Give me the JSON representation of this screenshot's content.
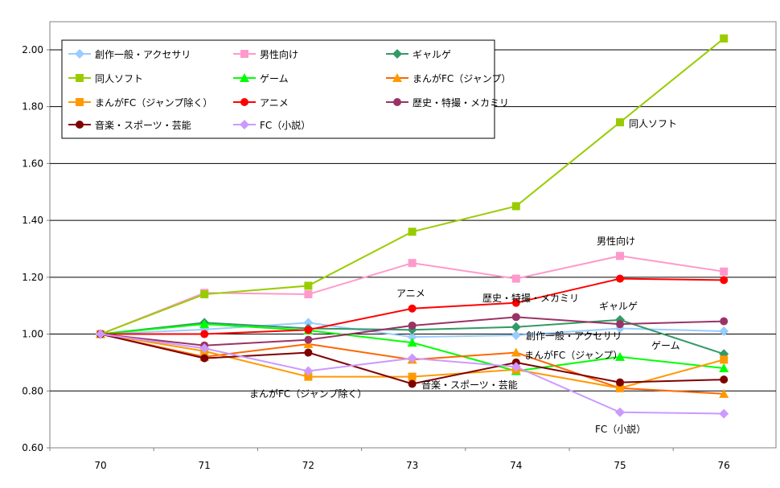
{
  "chart_data": {
    "type": "line",
    "title": "",
    "xlabel": "",
    "ylabel": "",
    "categories": [
      "70",
      "71",
      "72",
      "73",
      "74",
      "75",
      "76"
    ],
    "ylim": [
      0.6,
      2.0
    ],
    "yticks": [
      "0.60",
      "0.80",
      "1.00",
      "1.20",
      "1.40",
      "1.60",
      "1.80",
      "2.00"
    ],
    "grid": "horizontal",
    "legend": "top-left",
    "series": [
      {
        "name": "創作一般・アクセサリ",
        "color": "#99CCFF",
        "marker": "diamond",
        "values": [
          1.0,
          1.016,
          1.04,
          0.99,
          0.996,
          1.02,
          1.01
        ]
      },
      {
        "name": "男性向け",
        "color": "#FF99CC",
        "marker": "square",
        "values": [
          1.0,
          1.145,
          1.14,
          1.25,
          1.195,
          1.275,
          1.22
        ]
      },
      {
        "name": "ギャルゲ",
        "color": "#339966",
        "marker": "diamond",
        "values": [
          1.0,
          1.04,
          1.02,
          1.015,
          1.025,
          1.05,
          0.93
        ]
      },
      {
        "name": "同人ソフト",
        "color": "#99CC00",
        "marker": "square",
        "values": [
          1.0,
          1.14,
          1.17,
          1.36,
          1.45,
          1.745,
          2.04
        ]
      },
      {
        "name": "ゲーム",
        "color": "#00FF00",
        "marker": "triangle",
        "values": [
          1.0,
          1.035,
          1.013,
          0.97,
          0.87,
          0.92,
          0.88
        ]
      },
      {
        "name": "まんがFC（ジャンプ）",
        "color": "#FF6600",
        "markerColor": "#FF9900",
        "marker": "triangle",
        "values": [
          1.0,
          0.92,
          0.965,
          0.91,
          0.935,
          0.81,
          0.79
        ]
      },
      {
        "name": "まんがFC（ジャンプ除く）",
        "color": "#FF9900",
        "marker": "square",
        "values": [
          1.0,
          0.94,
          0.85,
          0.85,
          0.875,
          0.81,
          0.91
        ]
      },
      {
        "name": "アニメ",
        "color": "#FF0000",
        "marker": "circle",
        "values": [
          1.0,
          1.0,
          1.015,
          1.09,
          1.11,
          1.195,
          1.19
        ]
      },
      {
        "name": "歴史・特撮・メカミリ",
        "color": "#993366",
        "marker": "circle",
        "values": [
          1.0,
          0.96,
          0.98,
          1.03,
          1.06,
          1.035,
          1.045
        ]
      },
      {
        "name": "音楽・スポーツ・芸能",
        "color": "#800000",
        "marker": "circle",
        "values": [
          1.0,
          0.915,
          0.935,
          0.825,
          0.9,
          0.83,
          0.84
        ]
      },
      {
        "name": "FC（小説）",
        "color": "#CC99FF",
        "marker": "diamond",
        "values": [
          1.0,
          0.95,
          0.87,
          0.915,
          0.885,
          0.725,
          0.72
        ]
      }
    ],
    "annotations": [
      {
        "text": "同人ソフト",
        "series": 3
      },
      {
        "text": "男性向け",
        "series": 1
      },
      {
        "text": "アニメ",
        "series": 7
      },
      {
        "text": "歴史・特撮・メカミリ",
        "series": 8
      },
      {
        "text": "ギャルゲ",
        "series": 2
      },
      {
        "text": "創作一般・アクセサリ",
        "series": 0
      },
      {
        "text": "ゲーム",
        "series": 4
      },
      {
        "text": "まんがFC（ジャンプ）",
        "series": 5
      },
      {
        "text": "音楽・スポーツ・芸能",
        "series": 9
      },
      {
        "text": "まんがFC（ジャンプ除く）",
        "series": 6
      },
      {
        "text": "FC（小説）",
        "series": 10
      }
    ]
  }
}
